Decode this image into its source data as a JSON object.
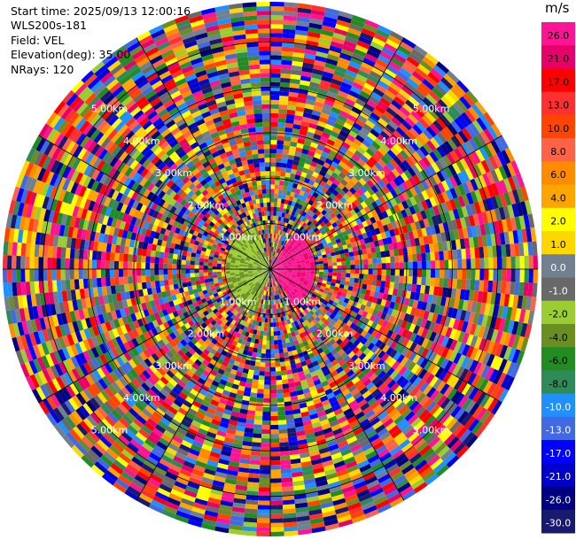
{
  "header": {
    "start_time": "Start time: 2025/09/13 12:00:16",
    "instrument": "WLS200s-181",
    "field": "Field: VEL",
    "elevation": "Elevation(deg): 35.00",
    "nrays": "NRays: 120"
  },
  "colorbar": {
    "unit": "m/s",
    "ticks": [
      "26.0",
      "21.0",
      "17.0",
      "13.0",
      "10.0",
      "8.0",
      "6.0",
      "4.0",
      "2.0",
      "1.0",
      "0.0",
      "-1.0",
      "-2.0",
      "-4.0",
      "-6.0",
      "-8.0",
      "-10.0",
      "-13.0",
      "-17.0",
      "-21.0",
      "-26.0",
      "-30.0"
    ],
    "colors": [
      "#ff1493",
      "#e8006a",
      "#ff0000",
      "#ff3030",
      "#ff4500",
      "#ff6347",
      "#ff8c00",
      "#ffa500",
      "#ffff00",
      "#ffd700",
      "#708090",
      "#696969",
      "#9acd32",
      "#6b8e23",
      "#228b22",
      "#2e8b57",
      "#1e90ff",
      "#4169e1",
      "#0000ff",
      "#0000cd",
      "#000080",
      "#191970"
    ]
  },
  "chart_data": {
    "type": "heatmap",
    "projection": "polar PPI",
    "nrays": 120,
    "elevation_deg": 35.0,
    "field": "VEL",
    "unit": "m/s",
    "range_rings_km": [
      1.0,
      2.0,
      3.0,
      4.0,
      5.0
    ],
    "range_ring_labels": [
      "1.00km",
      "2.00km",
      "3.00km",
      "4.00km",
      "5.00km"
    ],
    "value_levels": [
      26.0,
      21.0,
      17.0,
      13.0,
      10.0,
      8.0,
      6.0,
      4.0,
      2.0,
      1.0,
      0.0,
      -1.0,
      -2.0,
      -4.0,
      -6.0,
      -8.0,
      -10.0,
      -13.0,
      -17.0,
      -21.0,
      -26.0,
      -30.0
    ]
  }
}
